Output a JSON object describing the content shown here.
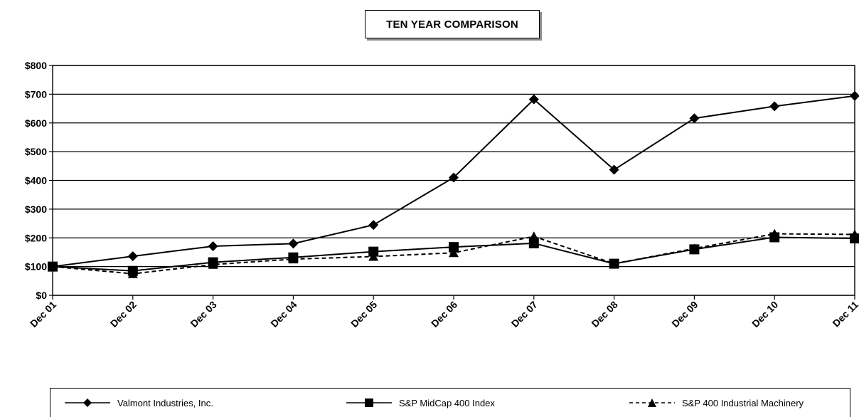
{
  "chart_data": {
    "type": "line",
    "title": "TEN YEAR COMPARISON",
    "categories": [
      "Dec 01",
      "Dec 02",
      "Dec 03",
      "Dec 04",
      "Dec 05",
      "Dec 06",
      "Dec 07",
      "Dec 08",
      "Dec 09",
      "Dec 10",
      "Dec 11"
    ],
    "ylim": [
      0,
      800
    ],
    "y_ticks": [
      0,
      100,
      200,
      300,
      400,
      500,
      600,
      700,
      800
    ],
    "y_tick_labels": [
      "$0",
      "$100",
      "$200",
      "$300",
      "$400",
      "$500",
      "$600",
      "$700",
      "$800"
    ],
    "grid": "horizontal",
    "legend_position": "bottom",
    "series": [
      {
        "name": "Valmont Industries, Inc.",
        "marker": "diamond",
        "line": "solid",
        "values": [
          100,
          136,
          171,
          180,
          245,
          410,
          682,
          437,
          616,
          658,
          694
        ]
      },
      {
        "name": "S&P MidCap 400 Index",
        "marker": "square",
        "line": "solid",
        "values": [
          100,
          85,
          115,
          132,
          152,
          168,
          181,
          110,
          160,
          202,
          198
        ]
      },
      {
        "name": "S&P 400 Industrial Machinery",
        "marker": "triangle",
        "line": "dashed",
        "values": [
          100,
          75,
          107,
          126,
          135,
          148,
          205,
          110,
          163,
          214,
          212
        ]
      }
    ]
  }
}
